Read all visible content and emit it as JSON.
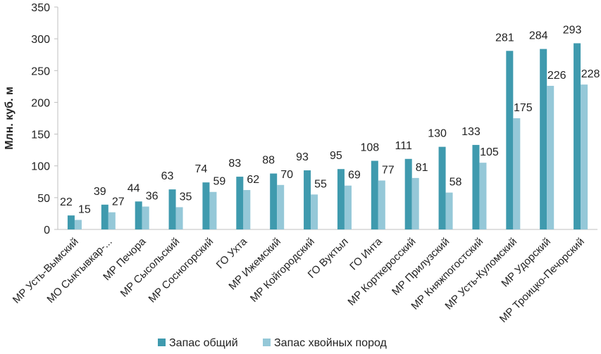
{
  "colors": {
    "total": "#3F9AAE",
    "conifer": "#95C8D8",
    "axis": "#BFBFBF",
    "text": "#222222"
  },
  "chart_data": {
    "type": "bar",
    "title": "",
    "xlabel": "",
    "ylabel": "Млн. куб. м",
    "ylim": [
      0,
      350
    ],
    "yticks": [
      0,
      50,
      100,
      150,
      200,
      250,
      300,
      350
    ],
    "grid": false,
    "legend_position": "bottom",
    "categories": [
      "МР Усть-Вымский",
      "МО Сыктывкар-...",
      "МР Печора",
      "МР Сысольский",
      "МР Сосногорский",
      "ГО Ухта",
      "МР Ижемский",
      "МР Койгородский",
      "ГО Вуктыл",
      "ГО Инта",
      "МР Корткеросский",
      "МР Прилузский",
      "МР Княжпогостский",
      "МР Усть-Куломский",
      "МР Удорский",
      "МР Троицко-Печорский"
    ],
    "series": [
      {
        "name": "Запас общий",
        "values": [
          22,
          39,
          44,
          63,
          74,
          83,
          88,
          93,
          95,
          108,
          111,
          130,
          133,
          281,
          284,
          293
        ]
      },
      {
        "name": "Запас хвойных пород",
        "values": [
          15,
          27,
          36,
          35,
          59,
          62,
          70,
          55,
          69,
          77,
          81,
          58,
          105,
          175,
          226,
          228
        ]
      }
    ]
  }
}
